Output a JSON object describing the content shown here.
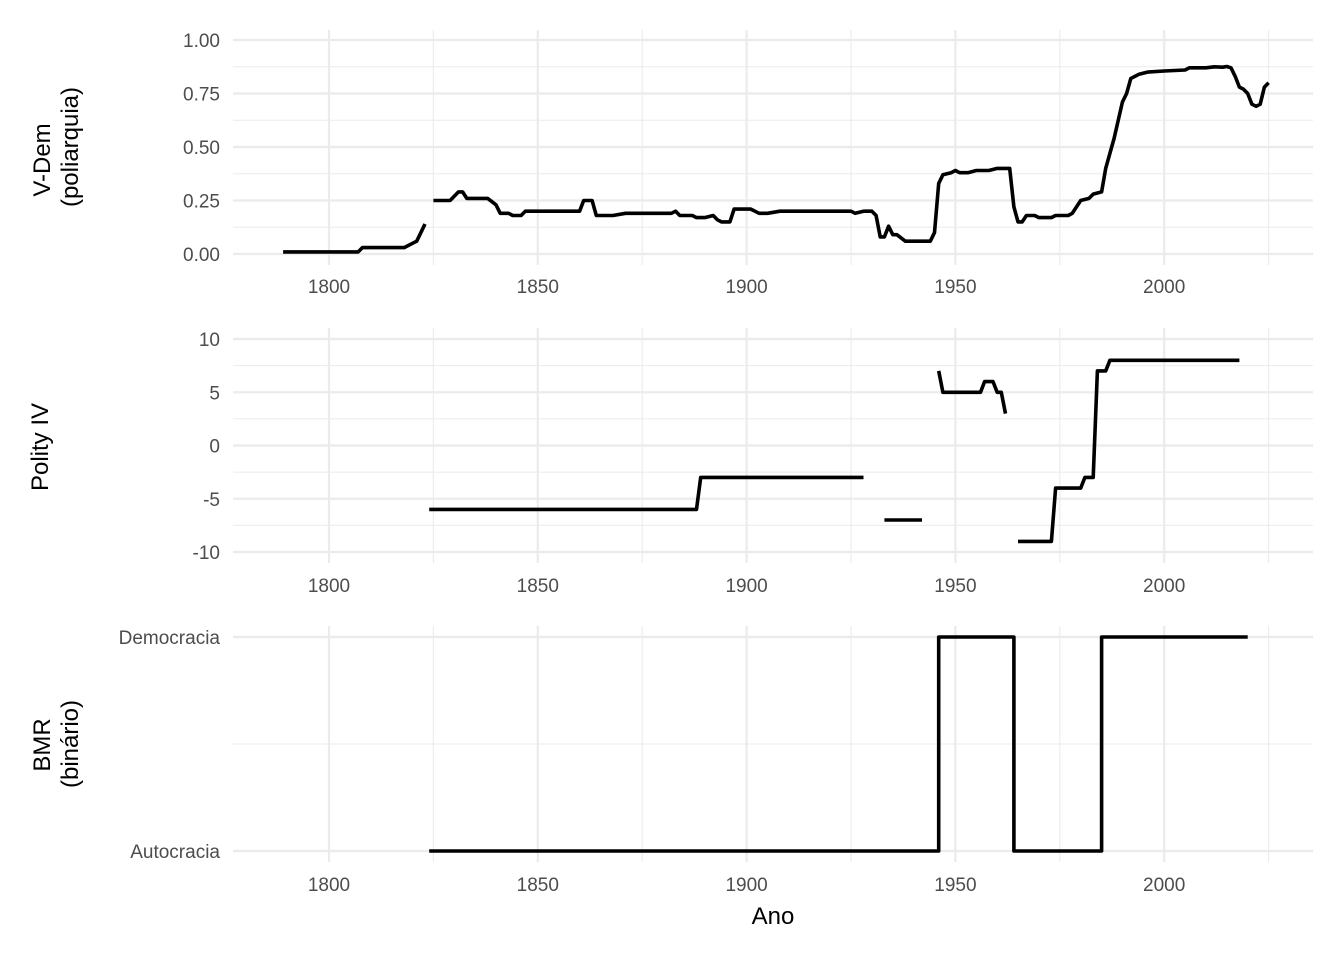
{
  "chart_data": [
    {
      "type": "line",
      "panel": "top",
      "ylabel": "V-Dem\n(poliarquia)",
      "ylabel_lines": [
        "V-Dem",
        "(poliarquia)"
      ],
      "yticks": [
        "0.00",
        "0.25",
        "0.50",
        "0.75",
        "1.00"
      ],
      "ylim": [
        0,
        1
      ],
      "xticks": [
        "1800",
        "1850",
        "1900",
        "1950",
        "2000"
      ],
      "grid": true,
      "segments": [
        [
          [
            1789,
            0.01
          ],
          [
            1807,
            0.01
          ],
          [
            1808,
            0.03
          ],
          [
            1818,
            0.03
          ],
          [
            1820,
            0.05
          ],
          [
            1821,
            0.06
          ],
          [
            1822,
            0.1
          ],
          [
            1823,
            0.14
          ]
        ],
        [
          [
            1825,
            0.25
          ],
          [
            1829,
            0.25
          ],
          [
            1831,
            0.29
          ],
          [
            1832,
            0.29
          ],
          [
            1833,
            0.26
          ],
          [
            1838,
            0.26
          ],
          [
            1840,
            0.23
          ],
          [
            1841,
            0.19
          ],
          [
            1843,
            0.19
          ],
          [
            1844,
            0.18
          ],
          [
            1846,
            0.18
          ],
          [
            1847,
            0.2
          ],
          [
            1860,
            0.2
          ],
          [
            1861,
            0.25
          ],
          [
            1863,
            0.25
          ],
          [
            1864,
            0.18
          ],
          [
            1868,
            0.18
          ],
          [
            1871,
            0.19
          ],
          [
            1876,
            0.19
          ],
          [
            1880,
            0.19
          ],
          [
            1882,
            0.19
          ],
          [
            1883,
            0.2
          ],
          [
            1884,
            0.18
          ],
          [
            1887,
            0.18
          ],
          [
            1888,
            0.17
          ],
          [
            1890,
            0.17
          ],
          [
            1892,
            0.18
          ],
          [
            1893,
            0.16
          ],
          [
            1894,
            0.15
          ],
          [
            1896,
            0.15
          ],
          [
            1897,
            0.21
          ],
          [
            1901,
            0.21
          ],
          [
            1903,
            0.19
          ],
          [
            1905,
            0.19
          ],
          [
            1908,
            0.2
          ],
          [
            1925,
            0.2
          ],
          [
            1926,
            0.19
          ],
          [
            1928,
            0.2
          ],
          [
            1930,
            0.2
          ],
          [
            1931,
            0.18
          ],
          [
            1932,
            0.08
          ],
          [
            1933,
            0.08
          ],
          [
            1934,
            0.13
          ],
          [
            1935,
            0.09
          ],
          [
            1936,
            0.09
          ],
          [
            1938,
            0.06
          ],
          [
            1940,
            0.06
          ],
          [
            1944,
            0.06
          ],
          [
            1945,
            0.1
          ],
          [
            1946,
            0.33
          ],
          [
            1947,
            0.37
          ],
          [
            1949,
            0.38
          ],
          [
            1950,
            0.39
          ],
          [
            1951,
            0.38
          ],
          [
            1953,
            0.38
          ],
          [
            1955,
            0.39
          ],
          [
            1958,
            0.39
          ],
          [
            1960,
            0.4
          ],
          [
            1962,
            0.4
          ],
          [
            1963,
            0.4
          ],
          [
            1964,
            0.22
          ],
          [
            1965,
            0.15
          ],
          [
            1966,
            0.15
          ],
          [
            1967,
            0.18
          ],
          [
            1969,
            0.18
          ],
          [
            1970,
            0.17
          ],
          [
            1973,
            0.17
          ],
          [
            1974,
            0.18
          ],
          [
            1977,
            0.18
          ],
          [
            1978,
            0.19
          ],
          [
            1980,
            0.25
          ],
          [
            1982,
            0.26
          ],
          [
            1983,
            0.28
          ],
          [
            1985,
            0.29
          ],
          [
            1986,
            0.4
          ],
          [
            1988,
            0.54
          ],
          [
            1990,
            0.71
          ],
          [
            1991,
            0.75
          ],
          [
            1992,
            0.82
          ],
          [
            1994,
            0.84
          ],
          [
            1996,
            0.85
          ],
          [
            2000,
            0.855
          ],
          [
            2005,
            0.86
          ],
          [
            2006,
            0.87
          ],
          [
            2008,
            0.87
          ],
          [
            2010,
            0.87
          ],
          [
            2012,
            0.875
          ],
          [
            2014,
            0.873
          ],
          [
            2015,
            0.876
          ],
          [
            2016,
            0.87
          ],
          [
            2017,
            0.83
          ],
          [
            2018,
            0.78
          ],
          [
            2019,
            0.77
          ],
          [
            2020,
            0.75
          ],
          [
            2021,
            0.7
          ],
          [
            2022,
            0.69
          ],
          [
            2023,
            0.7
          ],
          [
            2024,
            0.78
          ],
          [
            2025,
            0.8
          ]
        ]
      ]
    },
    {
      "type": "line",
      "panel": "middle",
      "ylabel": "Polity IV",
      "ylabel_lines": [
        "Polity IV"
      ],
      "yticks": [
        "-10",
        "-5",
        "0",
        "5",
        "10"
      ],
      "ylim": [
        -10,
        10
      ],
      "xticks": [
        "1800",
        "1850",
        "1900",
        "1950",
        "2000"
      ],
      "grid": true,
      "segments": [
        [
          [
            1824,
            -6
          ],
          [
            1888,
            -6
          ],
          [
            1889,
            -3
          ],
          [
            1928,
            -3
          ]
        ],
        [
          [
            1933,
            -7
          ],
          [
            1942,
            -7
          ]
        ],
        [
          [
            1946,
            7
          ],
          [
            1947,
            5
          ],
          [
            1956,
            5
          ],
          [
            1957,
            6
          ],
          [
            1959,
            6
          ],
          [
            1960,
            5
          ],
          [
            1961,
            5
          ],
          [
            1962,
            3
          ]
        ],
        [
          [
            1965,
            -9
          ],
          [
            1973,
            -9
          ],
          [
            1974,
            -4
          ],
          [
            1980,
            -4
          ],
          [
            1981,
            -3
          ],
          [
            1983,
            -3
          ],
          [
            1984,
            7
          ],
          [
            1986,
            7
          ],
          [
            1987,
            8
          ],
          [
            2018,
            8
          ]
        ]
      ]
    },
    {
      "type": "line",
      "panel": "bottom",
      "ylabel": "BMR\n(binário)",
      "ylabel_lines": [
        "BMR",
        "(binário)"
      ],
      "yticks": [
        "Autocracia",
        "Democracia"
      ],
      "ylim": [
        0,
        1
      ],
      "xticks": [
        "1800",
        "1850",
        "1900",
        "1950",
        "2000"
      ],
      "xlabel": "Ano",
      "grid": true,
      "segments": [
        [
          [
            1824,
            0
          ],
          [
            1946,
            0
          ],
          [
            1946,
            1
          ],
          [
            1964,
            1
          ],
          [
            1964,
            0
          ],
          [
            1985,
            0
          ],
          [
            1985,
            1
          ],
          [
            2020,
            1
          ]
        ]
      ]
    }
  ],
  "labels": {
    "xlabel": "Ano",
    "panel1_ylabel_line1": "V-Dem",
    "panel1_ylabel_line2": "(poliarquia)",
    "panel2_ylabel": "Polity IV",
    "panel3_ylabel_line1": "BMR",
    "panel3_ylabel_line2": "(binário)"
  }
}
